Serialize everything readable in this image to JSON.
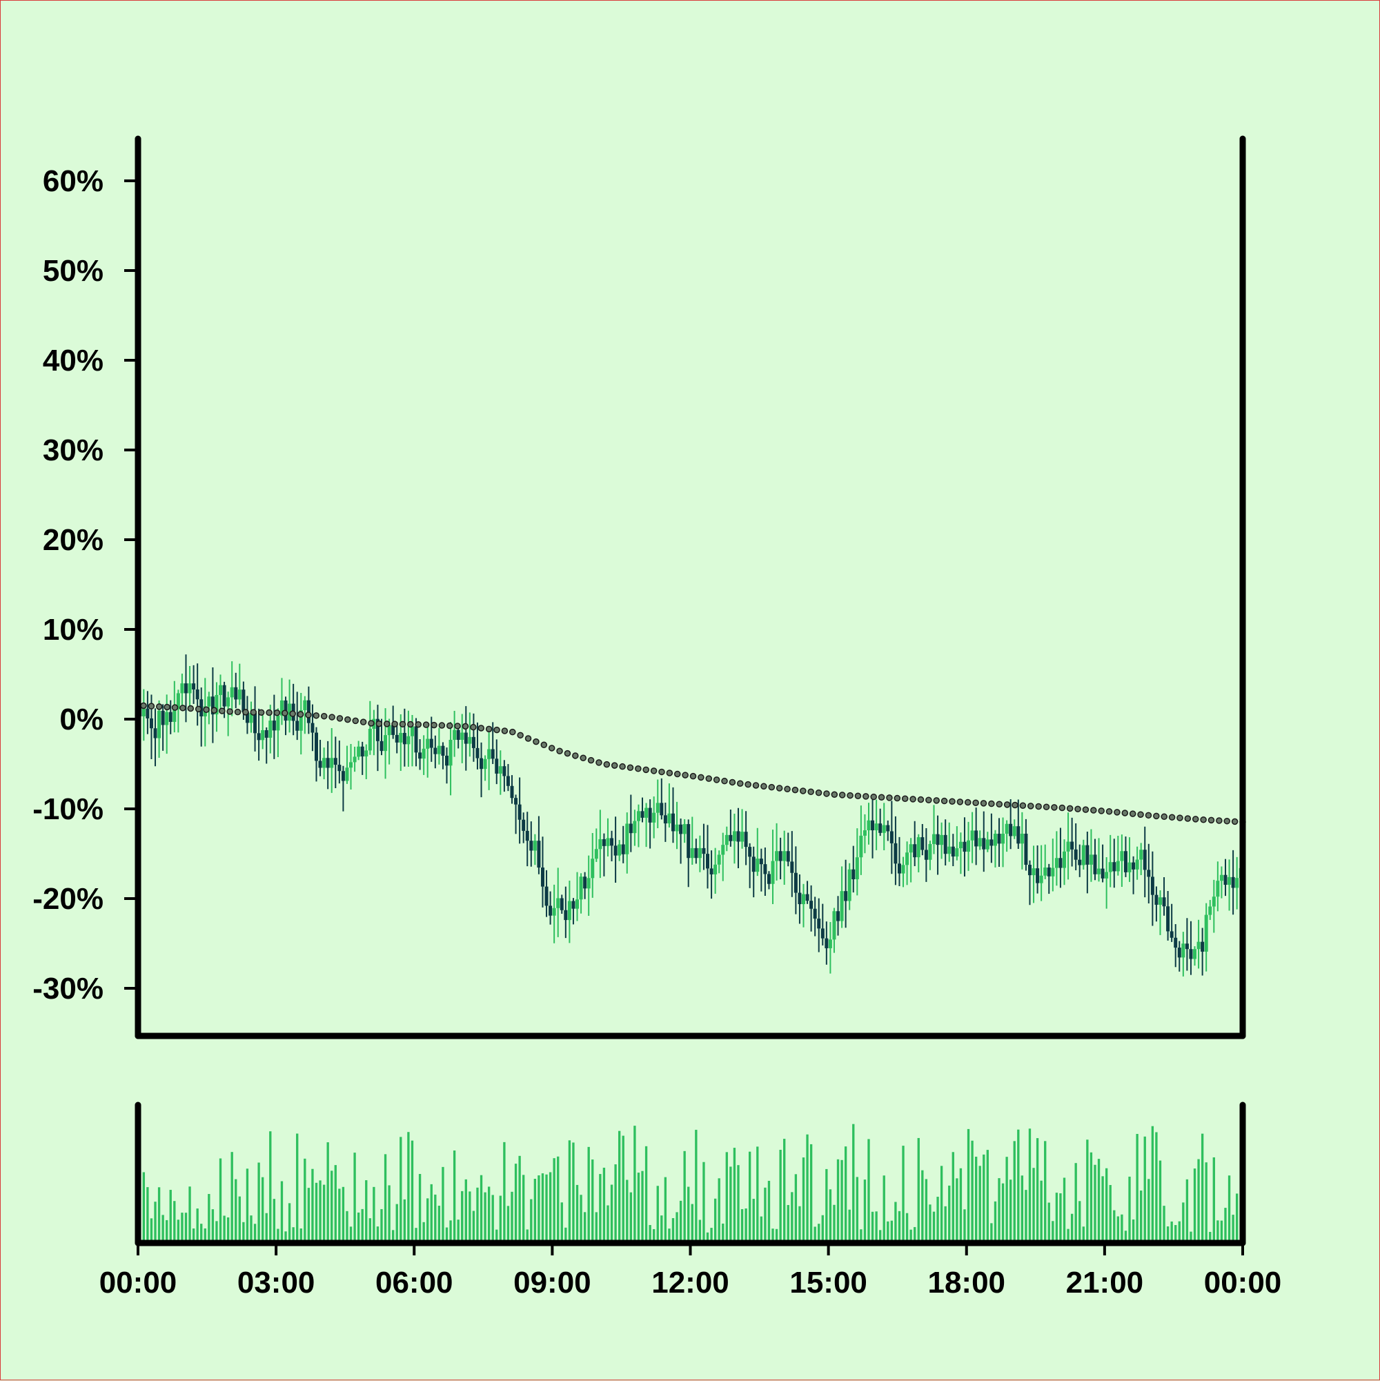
{
  "chart_data": {
    "type": "candlestick",
    "interval_minutes": 5,
    "colors": {
      "background": "#dbfbd8",
      "border": "#d83a3a",
      "up": "#2ebf5e",
      "down": "#0c3a44",
      "volume": "#2ebf5e",
      "trend_line": "#1a1a1a",
      "trend_dot_fill": "#6a7a6a",
      "axis": "#000000"
    },
    "y_axis": {
      "format": "percent",
      "ticks": [
        60,
        50,
        40,
        30,
        20,
        10,
        0,
        -10,
        -20,
        -30
      ],
      "tick_labels": [
        "60%",
        "50%",
        "40%",
        "30%",
        "20%",
        "10%",
        "0%",
        "-10%",
        "-20%",
        "-30%"
      ],
      "ylim": [
        -35,
        65
      ]
    },
    "x_axis": {
      "tick_labels": [
        "00:00",
        "03:00",
        "06:00",
        "09:00",
        "12:00",
        "15:00",
        "18:00",
        "21:00",
        "00:00"
      ],
      "range_hours": [
        0,
        24
      ]
    },
    "price_path": [
      [
        0,
        1.5
      ],
      [
        0.5,
        0
      ],
      [
        1,
        3
      ],
      [
        1.5,
        1
      ],
      [
        2,
        3
      ],
      [
        2.5,
        -2
      ],
      [
        2.75,
        -3.5
      ],
      [
        3,
        1
      ],
      [
        3.5,
        1
      ],
      [
        4,
        -5
      ],
      [
        4.5,
        -6
      ],
      [
        5,
        -2
      ],
      [
        5.5,
        -1
      ],
      [
        6,
        -3
      ],
      [
        6.5,
        -4
      ],
      [
        7,
        -1
      ],
      [
        7.5,
        -5
      ],
      [
        8,
        -5.5
      ],
      [
        8.5,
        -14
      ],
      [
        9,
        -22
      ],
      [
        9.5,
        -20
      ],
      [
        10,
        -15
      ],
      [
        10.5,
        -13
      ],
      [
        11,
        -12
      ],
      [
        11.5,
        -11
      ],
      [
        12,
        -15
      ],
      [
        12.5,
        -17
      ],
      [
        13,
        -13
      ],
      [
        13.5,
        -17
      ],
      [
        14,
        -15
      ],
      [
        14.5,
        -21
      ],
      [
        15,
        -24
      ],
      [
        15.5,
        -17
      ],
      [
        16,
        -10
      ],
      [
        16.5,
        -16
      ],
      [
        17,
        -14
      ],
      [
        17.5,
        -14
      ],
      [
        18,
        -14
      ],
      [
        18.5,
        -14
      ],
      [
        19,
        -12
      ],
      [
        19.5,
        -18
      ],
      [
        20,
        -16
      ],
      [
        20.5,
        -15
      ],
      [
        21,
        -17
      ],
      [
        21.5,
        -16
      ],
      [
        22,
        -18
      ],
      [
        22.5,
        -24
      ],
      [
        23,
        -26
      ],
      [
        23.5,
        -18
      ],
      [
        24,
        -18
      ]
    ],
    "trend_path": [
      [
        0,
        1.5
      ],
      [
        1,
        1.2
      ],
      [
        2,
        0.8
      ],
      [
        3,
        0.7
      ],
      [
        4,
        0.3
      ],
      [
        5,
        -0.5
      ],
      [
        6,
        -0.6
      ],
      [
        7,
        -0.8
      ],
      [
        8,
        -1.4
      ],
      [
        9,
        -3.5
      ],
      [
        10,
        -5
      ],
      [
        11,
        -5.7
      ],
      [
        12,
        -6.4
      ],
      [
        13,
        -7.2
      ],
      [
        14,
        -7.8
      ],
      [
        15,
        -8.4
      ],
      [
        16,
        -8.7
      ],
      [
        17,
        -9
      ],
      [
        18,
        -9.3
      ],
      [
        19,
        -9.6
      ],
      [
        20,
        -9.9
      ],
      [
        21,
        -10.3
      ],
      [
        22,
        -10.8
      ],
      [
        23,
        -11.2
      ],
      [
        24,
        -11.5
      ]
    ],
    "volume_range": [
      0,
      1
    ]
  }
}
